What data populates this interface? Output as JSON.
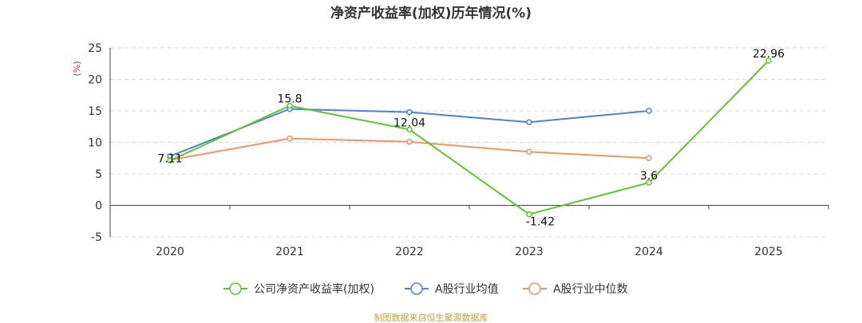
{
  "chart_data": {
    "type": "line",
    "title": "净资产收益率(加权)历年情况(%)",
    "y_unit_label": "(%)",
    "categories": [
      "2020",
      "2021",
      "2022",
      "2023",
      "2024",
      "2025"
    ],
    "ylim": [
      -5,
      25
    ],
    "yticks": [
      -5,
      0,
      5,
      10,
      15,
      20,
      25
    ],
    "grid": true,
    "legend_position": "bottom",
    "series": [
      {
        "name": "公司净资产收益率(加权)",
        "color": "#5cc72a",
        "values": [
          7.11,
          15.8,
          12.04,
          -1.42,
          3.6,
          22.96
        ],
        "data_labels": [
          "7.11",
          "15.8",
          "12.04",
          "-1.42",
          "3.6",
          "22.96"
        ]
      },
      {
        "name": "A股行业均值",
        "color": "#4d7fdc",
        "values": [
          7.8,
          15.3,
          14.8,
          13.2,
          15.0,
          null
        ]
      },
      {
        "name": "A股行业中位数",
        "color": "#f4925f",
        "values": [
          7.2,
          10.6,
          10.1,
          8.5,
          7.5,
          null
        ]
      }
    ]
  },
  "source": "制图数据来自恒生聚源数据库"
}
